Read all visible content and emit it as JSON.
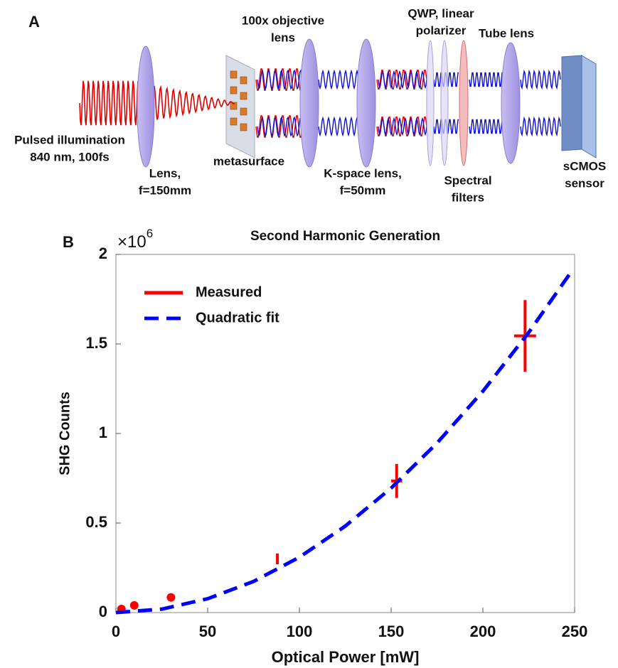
{
  "panel_a": {
    "label": "A",
    "labels": [
      {
        "lines": [
          "Pulsed illumination",
          "840 nm, 100fs"
        ]
      },
      {
        "lines": [
          "Lens,",
          "f=150mm"
        ]
      },
      {
        "lines": [
          "metasurface"
        ]
      },
      {
        "lines": [
          "100x objective",
          "lens"
        ]
      },
      {
        "lines": [
          "K-space lens,",
          "f=50mm"
        ]
      },
      {
        "lines": [
          "QWP, linear",
          "polarizer"
        ]
      },
      {
        "lines": [
          "Spectral",
          "filters"
        ]
      },
      {
        "lines": [
          "Tube lens"
        ]
      },
      {
        "lines": [
          "sCMOS",
          "sensor"
        ]
      }
    ]
  },
  "chart_data": {
    "type": "scatter",
    "panel_label": "B",
    "title": "Second Harmonic Generation",
    "x_label": "Optical Power [mW]",
    "y_label": "SHG Counts",
    "y_multiplier": {
      "base": "×10",
      "exponent": "6"
    },
    "xlim": [
      0,
      250
    ],
    "ylim": [
      0,
      2000000
    ],
    "xticks": [
      0,
      50,
      100,
      150,
      200,
      250
    ],
    "yticks": [
      0,
      {
        "value": 500000,
        "label": "0.5"
      },
      {
        "value": 1000000,
        "label": "1"
      },
      {
        "value": 1500000,
        "label": "1.5"
      },
      {
        "value": 2000000,
        "label": "2"
      }
    ],
    "legend": "upper left",
    "series": [
      {
        "name": "Measured",
        "color": "#ff0000",
        "style": "markers",
        "x": [
          3,
          10,
          30,
          88,
          153,
          223
        ],
        "values": [
          20000,
          40000,
          85000,
          300000,
          735000,
          1545000
        ],
        "errors": [
          0,
          0,
          0,
          30000,
          95000,
          200000
        ],
        "x_errors": [
          0,
          0,
          0,
          0,
          3,
          6
        ]
      },
      {
        "name": "Quadratic fit",
        "color": "#0000ff",
        "style": "dashed",
        "x": [
          0,
          25,
          50,
          75,
          100,
          125,
          150,
          175,
          200,
          225,
          248
        ],
        "values": [
          0,
          19313,
          77250,
          173813,
          309000,
          482813,
          695250,
          946313,
          1236000,
          1564313,
          1900474
        ]
      }
    ]
  }
}
